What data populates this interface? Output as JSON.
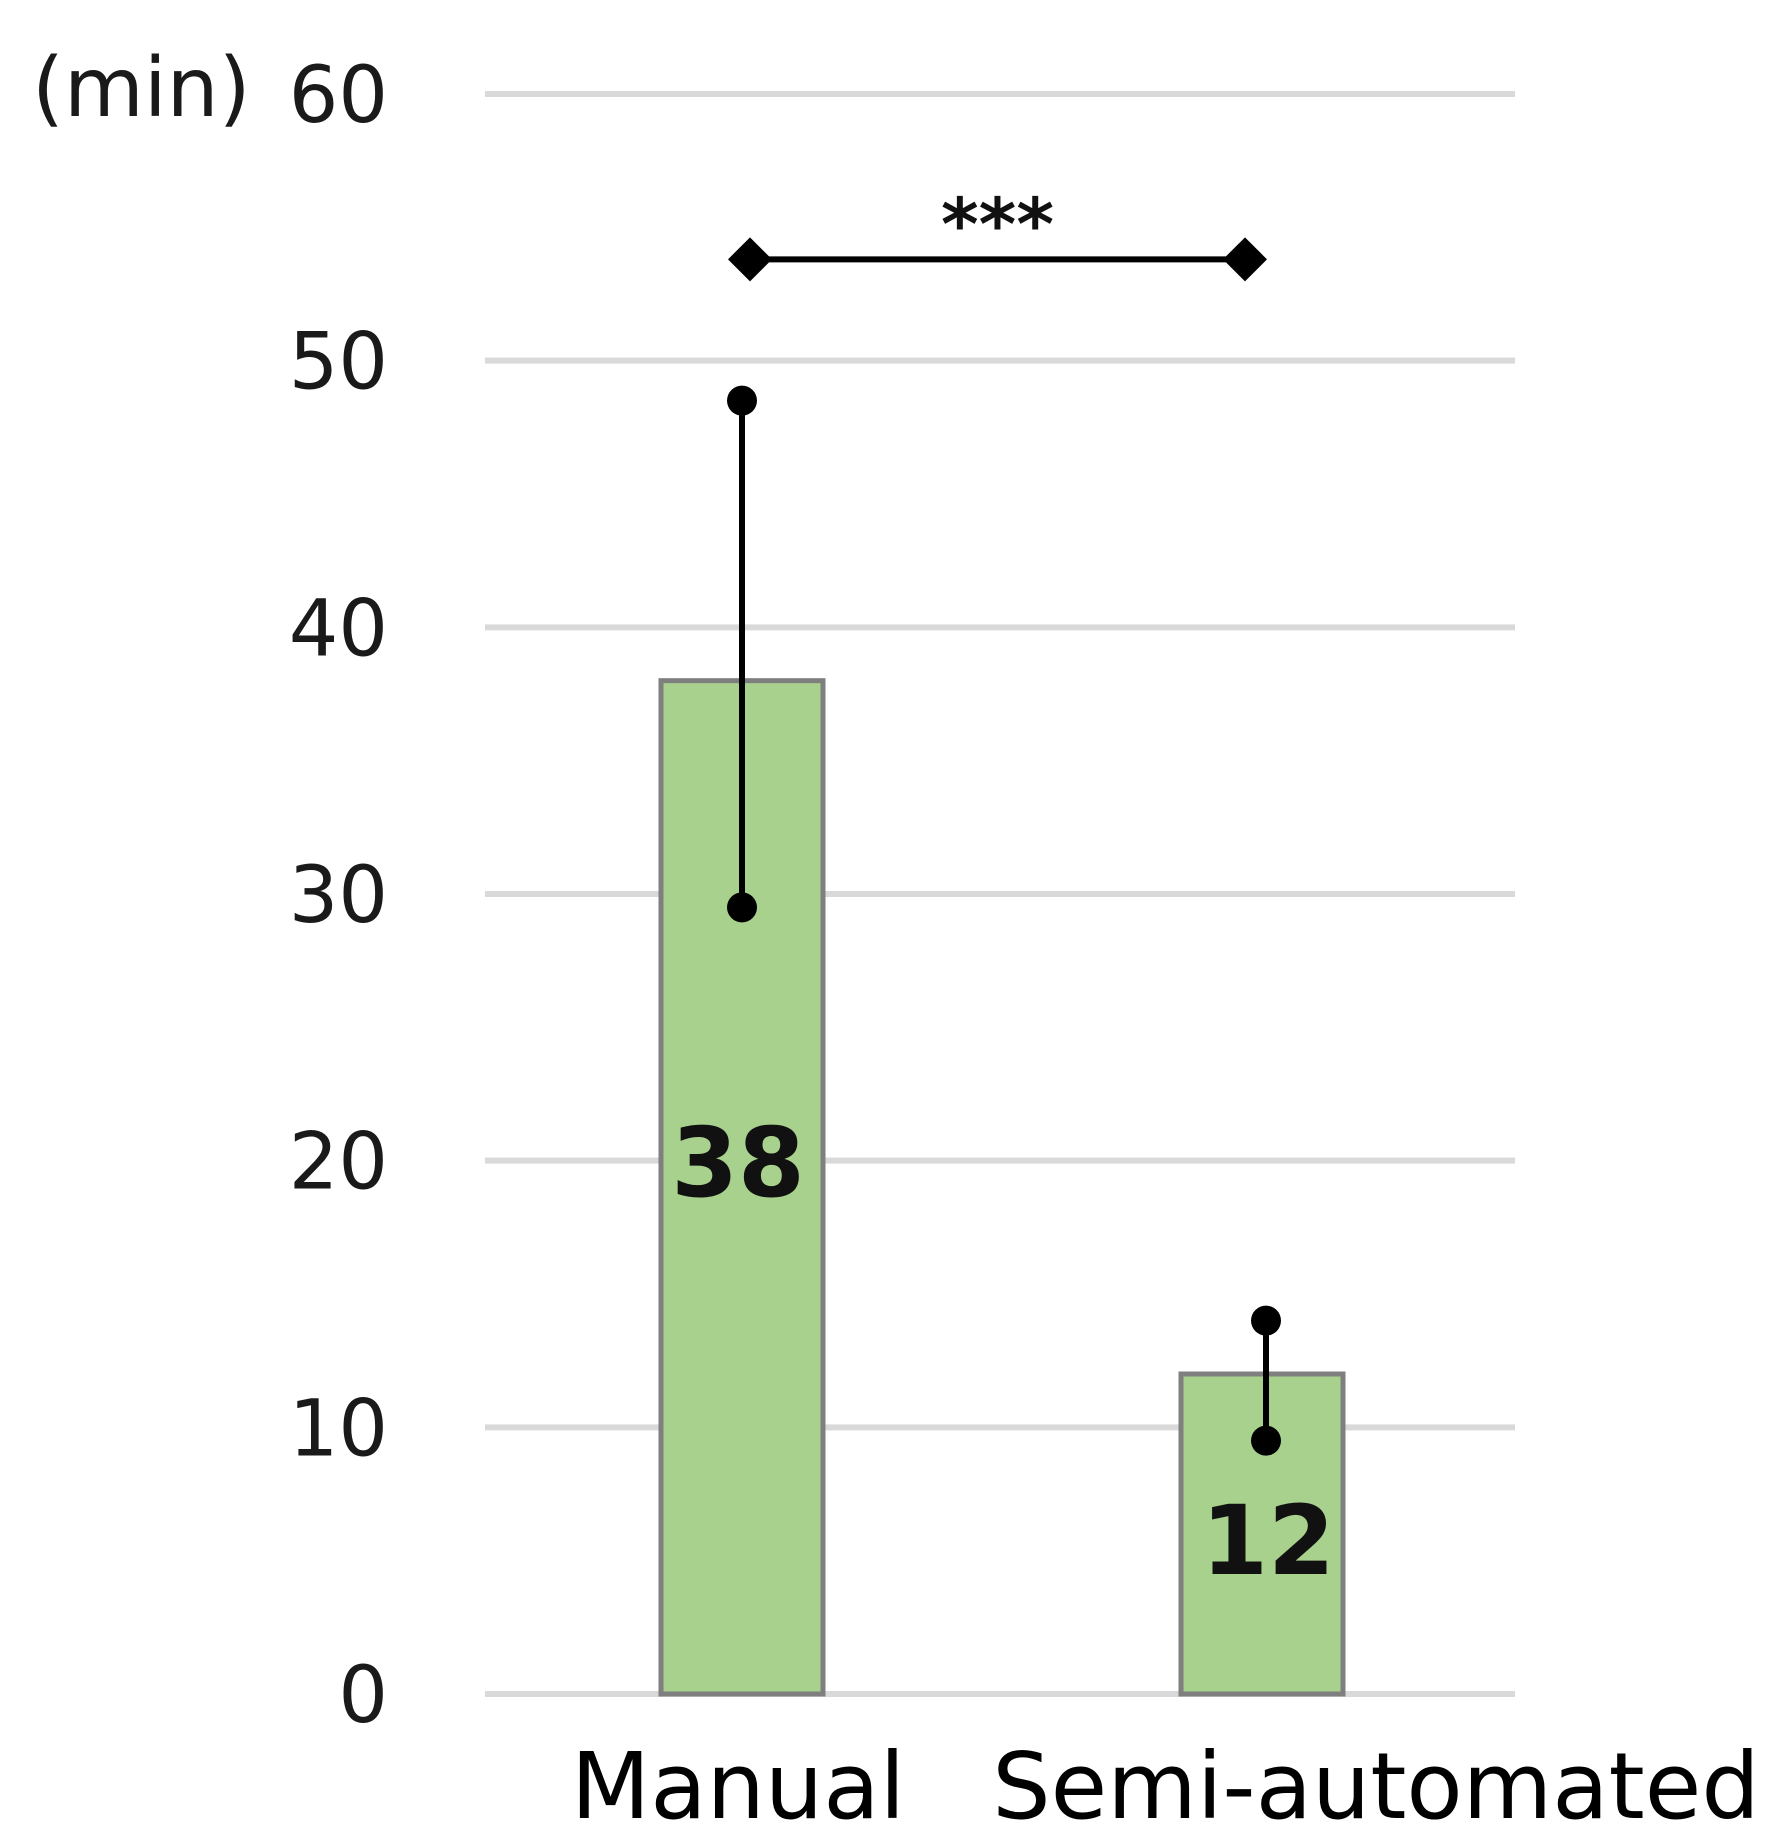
{
  "chart_data": {
    "type": "bar",
    "unit_label": "(min)",
    "categories": [
      "Manual",
      "Semi-automated"
    ],
    "values": [
      38,
      12
    ],
    "data_labels": [
      "38",
      "12"
    ],
    "error_bars": [
      {
        "low": 29.5,
        "high": 48.5
      },
      {
        "low": 9.5,
        "high": 14
      }
    ],
    "yticks": [
      "0",
      "10",
      "20",
      "30",
      "40",
      "50",
      "60"
    ],
    "ylim": [
      0,
      60
    ],
    "grid": true,
    "significance": {
      "label": "***",
      "from": "Manual",
      "to": "Semi-automated",
      "y": 53.8
    },
    "colors": {
      "bar_fill": "#a9d18e",
      "bar_stroke": "#7f7f7f",
      "grid": "#d9d9d9",
      "marker": "#000000"
    }
  }
}
